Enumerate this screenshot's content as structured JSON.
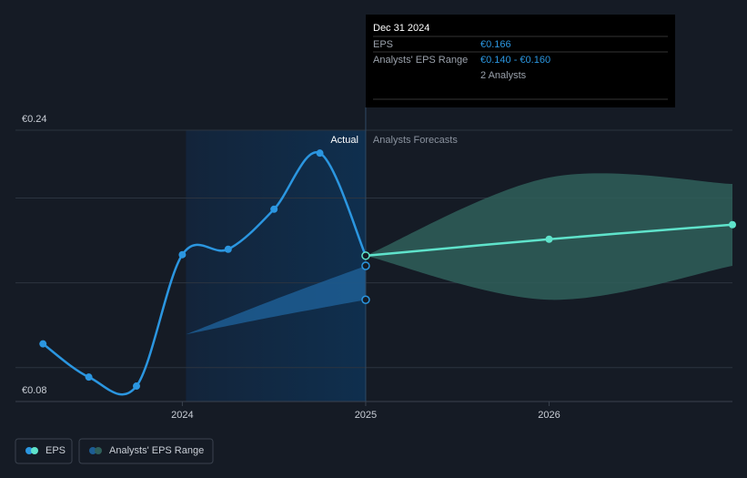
{
  "chart_data": {
    "type": "line",
    "xlim": [
      2023.09,
      2027
    ],
    "xticks": [
      2024,
      2025,
      2026
    ],
    "ylim": [
      0.08,
      0.24
    ],
    "yticks": [
      {
        "value": 0.24,
        "label": "€0.24"
      },
      {
        "value": 0.08,
        "label": "€0.08"
      }
    ],
    "grid_lines": [
      0.1,
      0.15,
      0.2,
      0.24
    ],
    "actual_label": "Actual",
    "forecast_label": "Analysts Forecasts",
    "series": [
      {
        "name": "EPS",
        "color": "#2b96e0",
        "forecast_color": "#5fe3cb",
        "x": [
          2023.24,
          2023.49,
          2023.75,
          2024.0,
          2024.25,
          2024.5,
          2024.75,
          2025.0
        ],
        "values": [
          0.114,
          0.0944,
          0.0891,
          0.1666,
          0.1698,
          0.1934,
          0.2265,
          0.166
        ],
        "forecast_x": [
          2025.0,
          2026.0,
          2027.0
        ],
        "forecast_values": [
          0.166,
          0.1757,
          0.1843
        ]
      },
      {
        "name": "Analysts' EPS Range",
        "color": "#1d5d93",
        "forecast_color": "#2f5f5a",
        "x": [
          2024.02,
          2024.5,
          2025.0
        ],
        "low": [
          0.1196,
          0.13,
          0.14
        ],
        "high": [
          0.1196,
          0.14,
          0.16
        ],
        "forecast_x": [
          2025.0,
          2026.0,
          2027.0
        ],
        "forecast_low": [
          0.166,
          0.14,
          0.16
        ],
        "forecast_high": [
          0.166,
          0.2121,
          0.2083
        ]
      }
    ],
    "tooltip": {
      "date": "Dec 31 2024",
      "rows": [
        {
          "label": "EPS",
          "value": "€0.166"
        },
        {
          "label": "Analysts' EPS Range",
          "value": "€0.140 - €0.160"
        }
      ],
      "note": "2 Analysts"
    }
  }
}
